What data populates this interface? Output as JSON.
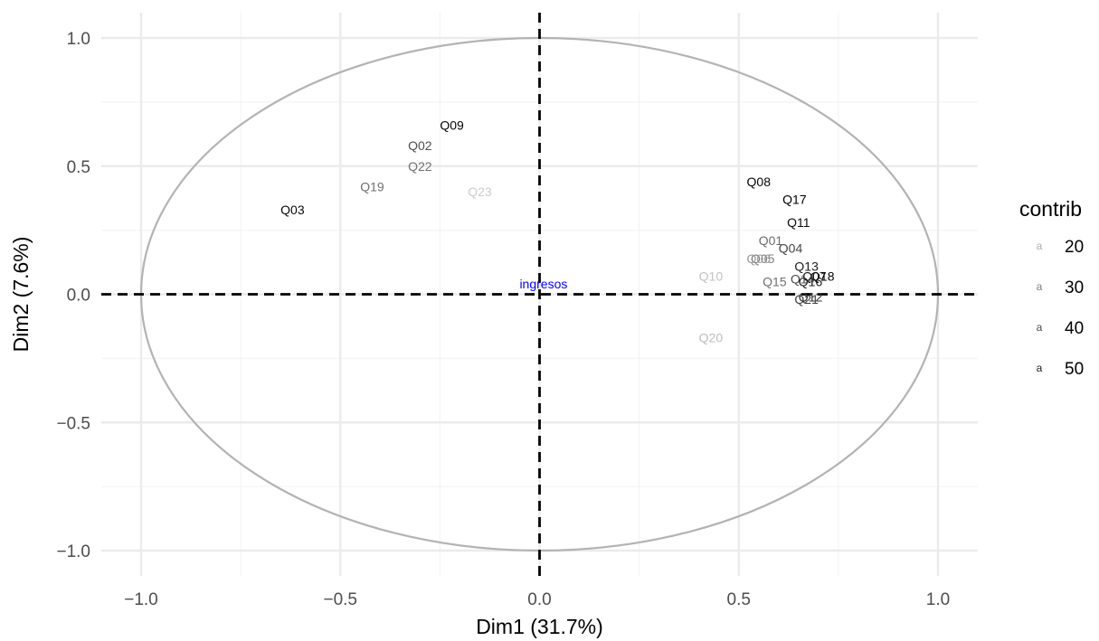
{
  "chart_data": {
    "type": "scatter",
    "subtype": "pca-correlation-circle",
    "title": "",
    "xlabel": "Dim1 (31.7%)",
    "ylabel": "Dim2 (7.6%)",
    "xlim": [
      -1.1,
      1.1
    ],
    "ylim": [
      -1.1,
      1.1
    ],
    "x_ticks": [
      -1.0,
      -0.5,
      0.0,
      0.5,
      1.0
    ],
    "x_tick_labels": [
      "−1.0",
      "−0.5",
      "0.0",
      "0.5",
      "1.0"
    ],
    "y_ticks": [
      -1.0,
      -0.5,
      0.0,
      0.5,
      1.0
    ],
    "y_tick_labels": [
      "−1.0",
      "−0.5",
      "0.0",
      "0.5",
      "1.0"
    ],
    "grid": true,
    "reference_lines": {
      "x": 0,
      "y": 0,
      "style": "dashed"
    },
    "unit_circle": true,
    "colors": {
      "grid_major": "#ebebeb",
      "grid_minor": "#f4f4f4",
      "circle": "#b3b3b3",
      "reference_line": "#000000",
      "supplementary": "#0000ff",
      "contrib_low": "#cccccc",
      "contrib_high": "#000000"
    },
    "legend": {
      "title": "contrib",
      "position": "right",
      "key_glyph": "a",
      "entries": [
        {
          "label": "20",
          "value": 20
        },
        {
          "label": "30",
          "value": 30
        },
        {
          "label": "40",
          "value": 40
        },
        {
          "label": "50",
          "value": 50
        }
      ]
    },
    "contrib_range": [
      14,
      56
    ],
    "points": [
      {
        "label": "Q09",
        "x": -0.22,
        "y": 0.66,
        "contrib": 55
      },
      {
        "label": "Q02",
        "x": -0.3,
        "y": 0.58,
        "contrib": 40
      },
      {
        "label": "Q22",
        "x": -0.3,
        "y": 0.5,
        "contrib": 33
      },
      {
        "label": "Q19",
        "x": -0.42,
        "y": 0.42,
        "contrib": 33
      },
      {
        "label": "Q23",
        "x": -0.15,
        "y": 0.4,
        "contrib": 14
      },
      {
        "label": "Q03",
        "x": -0.62,
        "y": 0.33,
        "contrib": 54
      },
      {
        "label": "Q08",
        "x": 0.55,
        "y": 0.44,
        "contrib": 55
      },
      {
        "label": "Q17",
        "x": 0.64,
        "y": 0.37,
        "contrib": 56
      },
      {
        "label": "Q11",
        "x": 0.65,
        "y": 0.28,
        "contrib": 54
      },
      {
        "label": "Q01",
        "x": 0.58,
        "y": 0.21,
        "contrib": 34
      },
      {
        "label": "Q04",
        "x": 0.63,
        "y": 0.18,
        "contrib": 42
      },
      {
        "label": "Q05",
        "x": 0.56,
        "y": 0.14,
        "contrib": 30
      },
      {
        "label": "Q06",
        "x": 0.55,
        "y": 0.14,
        "contrib": 24
      },
      {
        "label": "Q13",
        "x": 0.67,
        "y": 0.11,
        "contrib": 50
      },
      {
        "label": "Q07",
        "x": 0.69,
        "y": 0.07,
        "contrib": 52
      },
      {
        "label": "Q18",
        "x": 0.71,
        "y": 0.07,
        "contrib": 55
      },
      {
        "label": "Q14",
        "x": 0.66,
        "y": 0.06,
        "contrib": 40
      },
      {
        "label": "Q16",
        "x": 0.68,
        "y": 0.05,
        "contrib": 50
      },
      {
        "label": "Q15",
        "x": 0.59,
        "y": 0.05,
        "contrib": 33
      },
      {
        "label": "Q10",
        "x": 0.43,
        "y": 0.07,
        "contrib": 16
      },
      {
        "label": "Q12",
        "x": 0.68,
        "y": -0.01,
        "contrib": 46
      },
      {
        "label": "Q21",
        "x": 0.67,
        "y": -0.02,
        "contrib": 43
      },
      {
        "label": "Q20",
        "x": 0.43,
        "y": -0.17,
        "contrib": 17
      }
    ],
    "supplementary": [
      {
        "label": "ingresos",
        "x": 0.01,
        "y": 0.04
      }
    ]
  }
}
